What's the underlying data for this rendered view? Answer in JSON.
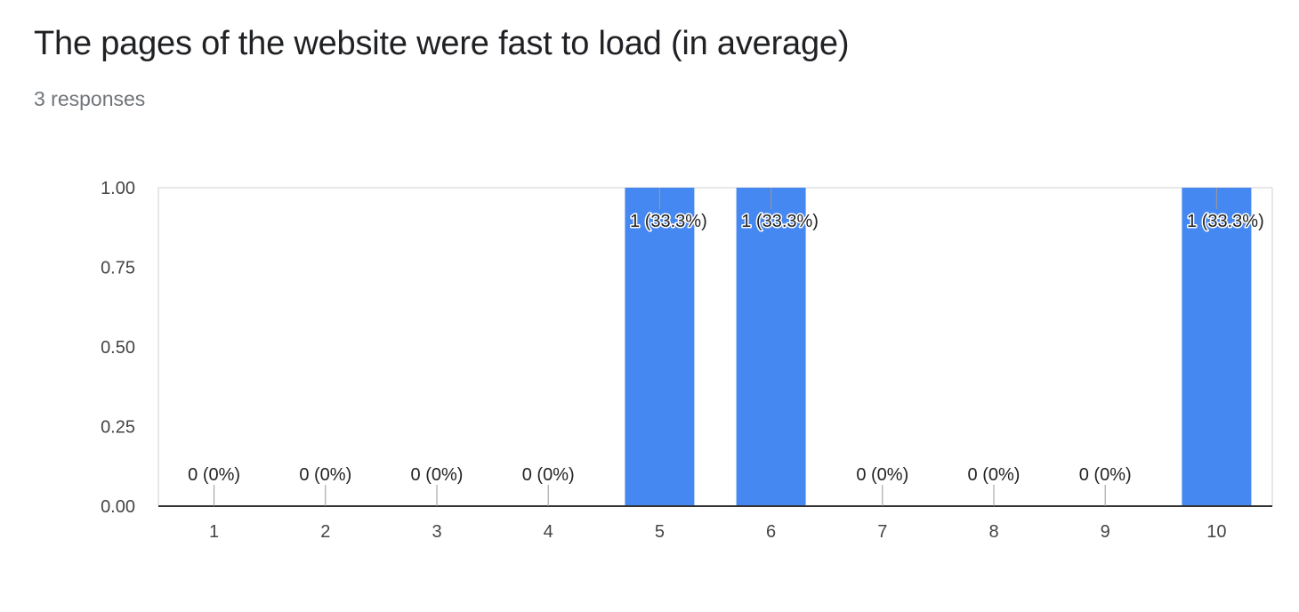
{
  "header": {
    "title": "The pages of the website were fast to load (in average)",
    "responses": "3 responses"
  },
  "colors": {
    "bar": "#4688f1",
    "axis": "#333333",
    "gridline": "#e0e0e0",
    "connector": "#999999"
  },
  "chart_data": {
    "type": "bar",
    "categories": [
      "1",
      "2",
      "3",
      "4",
      "5",
      "6",
      "7",
      "8",
      "9",
      "10"
    ],
    "values": [
      0,
      0,
      0,
      0,
      1,
      1,
      0,
      0,
      0,
      1
    ],
    "data_labels": [
      "0 (0%)",
      "0 (0%)",
      "0 (0%)",
      "0 (0%)",
      "1 (33.3%)",
      "1 (33.3%)",
      "0 (0%)",
      "0 (0%)",
      "0 (0%)",
      "1 (33.3%)"
    ],
    "y_ticks": [
      "0.00",
      "0.25",
      "0.50",
      "0.75",
      "1.00"
    ],
    "ylim": [
      0,
      1
    ],
    "grid": true,
    "legend": "none"
  }
}
